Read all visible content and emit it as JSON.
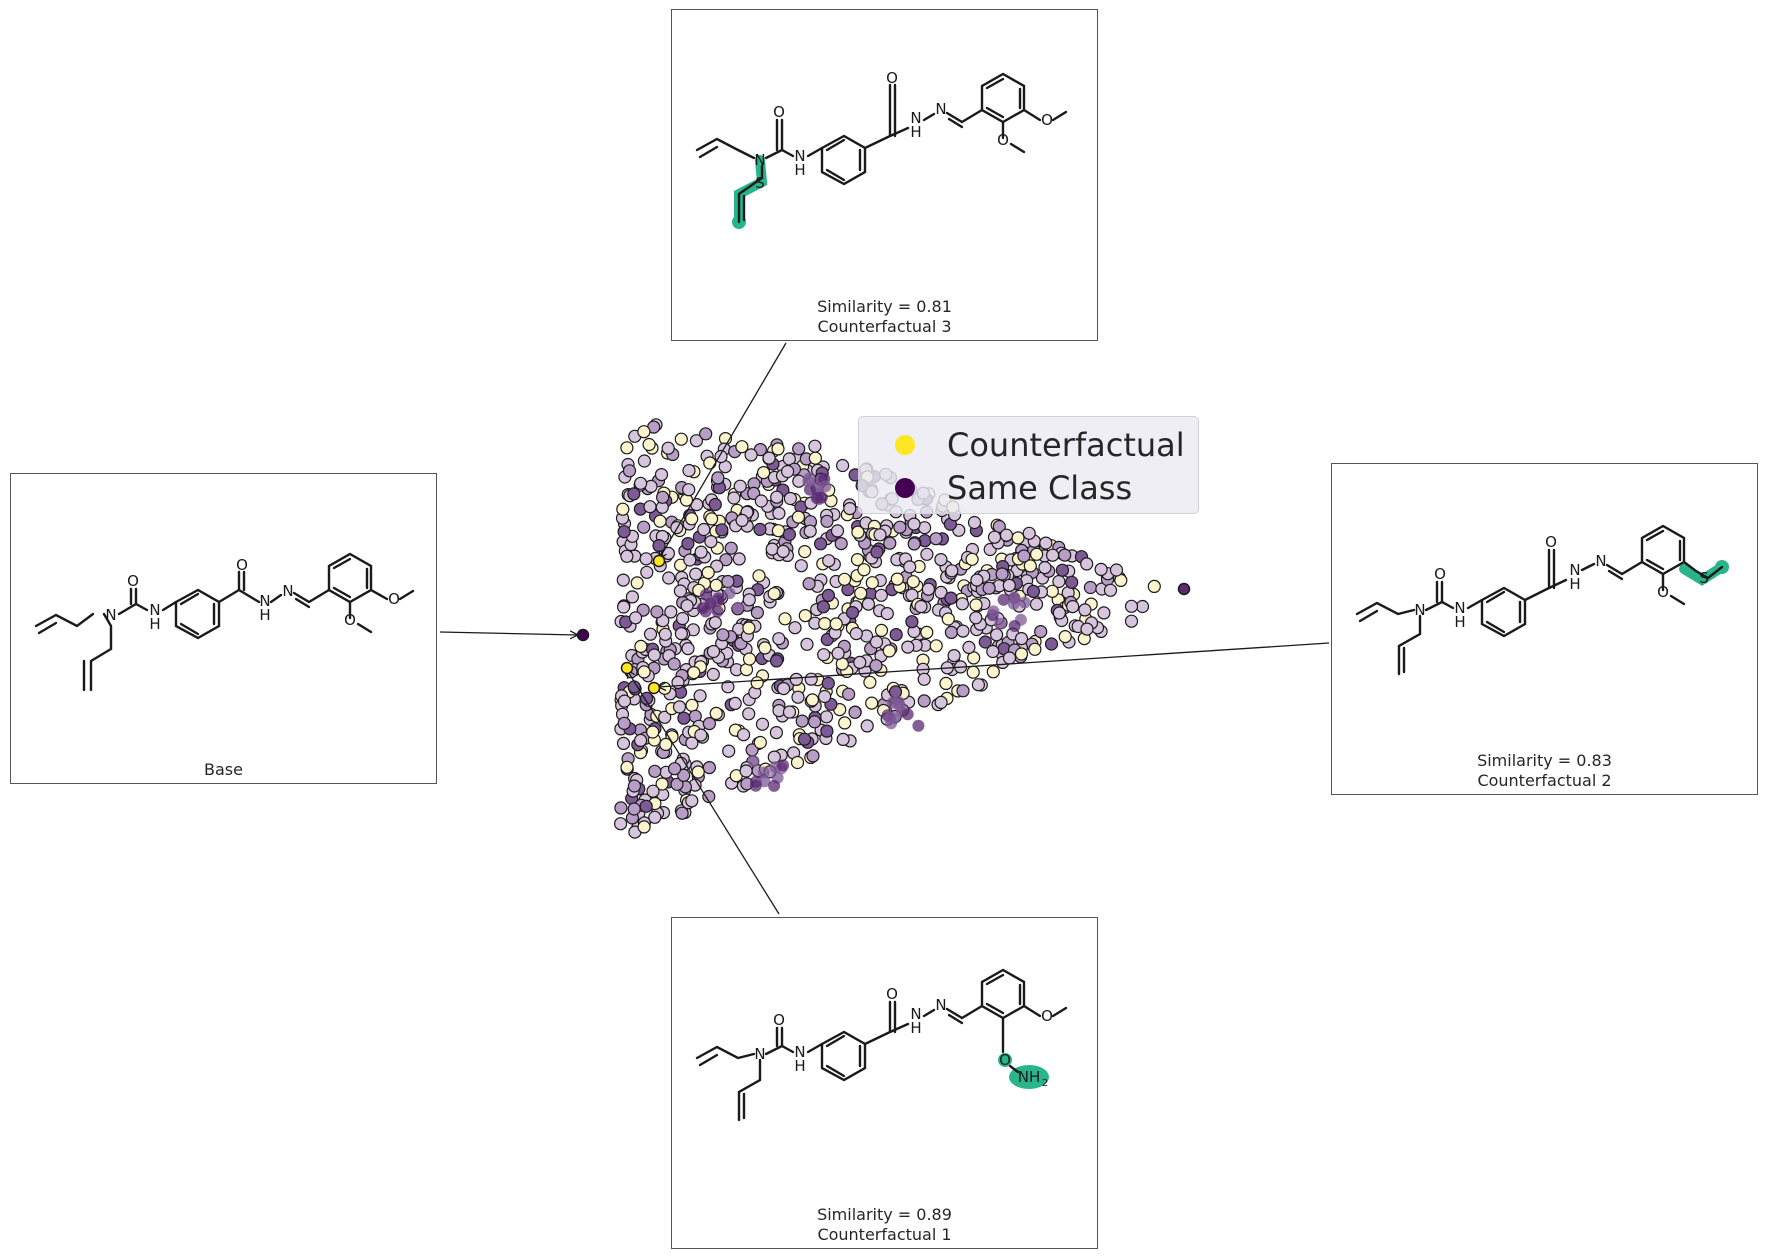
{
  "legend": {
    "items": [
      {
        "label": "Counterfactual",
        "color": "#fde725"
      },
      {
        "label": "Same Class",
        "color": "#440154"
      }
    ]
  },
  "panels": {
    "base": {
      "caption": "Base"
    },
    "cf3": {
      "similarity": "Similarity = 0.81",
      "caption": "Counterfactual 3"
    },
    "cf2": {
      "similarity": "Similarity = 0.83",
      "caption": "Counterfactual 2"
    },
    "cf1": {
      "similarity": "Similarity = 0.89",
      "caption": "Counterfactual 1"
    }
  },
  "colors": {
    "highlight": "#2ab48c",
    "bond": "#1a1a1a",
    "panel_border": "#555555",
    "point_low": "#fbf4cc",
    "point_high": "#5a2a72"
  }
}
